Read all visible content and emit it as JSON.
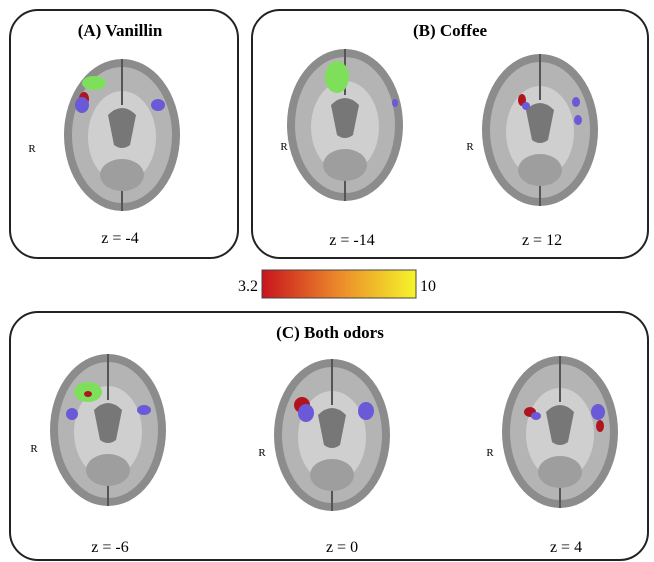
{
  "panels": [
    {
      "title": "(A) Vanillin",
      "slices": [
        {
          "side": "R",
          "z": "z = -4"
        }
      ]
    },
    {
      "title": "(B) Coffee",
      "slices": [
        {
          "side": "R",
          "z": "z = -14"
        },
        {
          "side": "R",
          "z": "z = 12"
        }
      ]
    },
    {
      "title": "(C) Both odors",
      "slices": [
        {
          "side": "R",
          "z": "z = -6"
        },
        {
          "side": "R",
          "z": "z = 0"
        },
        {
          "side": "R",
          "z": "z = 4"
        }
      ]
    }
  ],
  "colorbar": {
    "min": 3.2,
    "max": 10
  }
}
